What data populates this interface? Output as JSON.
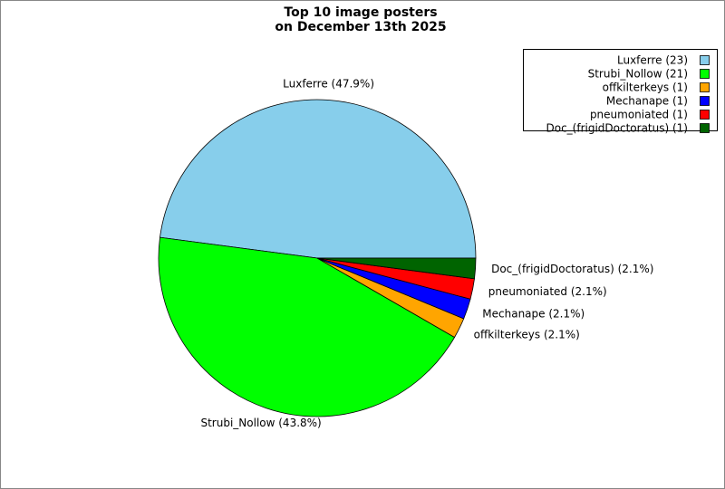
{
  "chart_data": {
    "type": "pie",
    "title": [
      "Top 10 image posters",
      "on December 13th 2025"
    ],
    "categories": [
      "Luxferre",
      "Strubi_Nollow",
      "offkilterkeys",
      "Mechanape",
      "pneumoniated",
      "Doc_(frigidDoctoratus)"
    ],
    "values": [
      23,
      21,
      1,
      1,
      1,
      1
    ],
    "value_labels": [
      "Luxferre (47.9%)",
      "Strubi_Nollow (43.8%)",
      "offkilterkeys (2.1%)",
      "Mechanape (2.1%)",
      "pneumoniated (2.1%)",
      "Doc_(frigidDoctoratus) (2.1%)"
    ],
    "legend_labels": [
      "Luxferre (23)",
      "Strubi_Nollow (21)",
      "offkilterkeys (1)",
      "Mechanape (1)",
      "pneumoniated (1)",
      "Doc_(frigidDoctoratus) (1)"
    ],
    "colors": [
      "#87ceeb",
      "#00ff00",
      "#ffa500",
      "#0000ff",
      "#ff0000",
      "#006400"
    ],
    "legend": "upper right"
  }
}
